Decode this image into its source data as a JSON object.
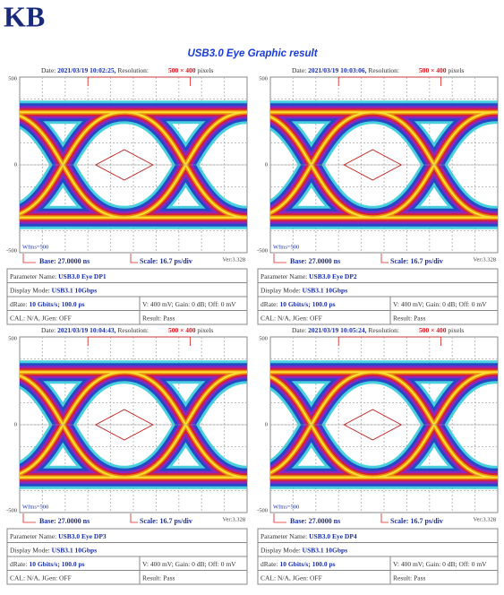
{
  "header": {
    "logo": "KB",
    "title": "USB3.0 Eye Graphic result"
  },
  "panels": [
    {
      "date_label": "Date:",
      "date": "2021/03/19 10:02:25,",
      "resolution_label": "Resolution:",
      "resolution": "500 × 400",
      "resolution_unit": "pixels",
      "y_labels": [
        "500",
        "0",
        "-500"
      ],
      "wfms": "Wfms=500",
      "base": "Base: 27.0000 ns",
      "scale": "Scale: 16.7 ps/div",
      "ver": "Ver:3.328",
      "parameter_label": "Parameter Name:",
      "parameter": "USB3.0 Eye DP1",
      "mode_label": "Display Mode:",
      "mode": "USB3.1 10Gbps",
      "rate_label": "dRate:",
      "rate": "10 Gbits/s; 100.0 ps",
      "levels": "V: 400 mV; Gain: 0 dB; Off: 0 mV",
      "cal": "CAL: N/A, JGen: OFF",
      "result": "Result: Pass"
    },
    {
      "date_label": "Date:",
      "date": "2021/03/19 10:03:06,",
      "resolution_label": "Resolution:",
      "resolution": "500 × 400",
      "resolution_unit": "pixels",
      "y_labels": [
        "500",
        "0",
        "-500"
      ],
      "wfms": "Wfms=500",
      "base": "Base: 27.0000 ns",
      "scale": "Scale: 16.7 ps/div",
      "ver": "Ver:3.328",
      "parameter_label": "Parameter Name:",
      "parameter": "USB3.0 Eye DP2",
      "mode_label": "Display Mode:",
      "mode": "USB3.1 10Gbps",
      "rate_label": "dRate:",
      "rate": "10 Gbits/s; 100.0 ps",
      "levels": "V: 400 mV; Gain: 0 dB; Off: 0 mV",
      "cal": "CAL: N/A, JGen: OFF",
      "result": "Result: Pass"
    },
    {
      "date_label": "Date:",
      "date": "2021/03/19 10:04:43,",
      "resolution_label": "Resolution:",
      "resolution": "500 × 400",
      "resolution_unit": "pixels",
      "y_labels": [
        "500",
        "0",
        "-500"
      ],
      "wfms": "Wfms=500",
      "base": "Base: 27.0000 ns",
      "scale": "Scale: 16.7 ps/div",
      "ver": "Ver:3.328",
      "parameter_label": "Parameter Name:",
      "parameter": "USB3.0 Eye DP3",
      "mode_label": "Display Mode:",
      "mode": "USB3.1 10Gbps",
      "rate_label": "dRate:",
      "rate": "10 Gbits/s; 100.0 ps",
      "levels": "V: 400 mV; Gain: 0 dB; Off: 0 mV",
      "cal": "CAL: N/A, JGen: OFF",
      "result": "Result: Pass"
    },
    {
      "date_label": "Date:",
      "date": "2021/03/19 10:05:24,",
      "resolution_label": "Resolution:",
      "resolution": "500 × 400",
      "resolution_unit": "pixels",
      "y_labels": [
        "500",
        "0",
        "-500"
      ],
      "wfms": "Wfms=500",
      "base": "Base: 27.0000 ns",
      "scale": "Scale: 16.7 ps/div",
      "ver": "Ver:3.328",
      "parameter_label": "Parameter Name:",
      "parameter": "USB3.0 Eye DP4",
      "mode_label": "Display Mode:",
      "mode": "USB3.1 10Gbps",
      "rate_label": "dRate:",
      "rate": "10 Gbits/s; 100.0 ps",
      "levels": "V: 400 mV; Gain: 0 dB; Off: 0 mV",
      "cal": "CAL: N/A, JGen: OFF",
      "result": "Result: Pass"
    }
  ]
}
